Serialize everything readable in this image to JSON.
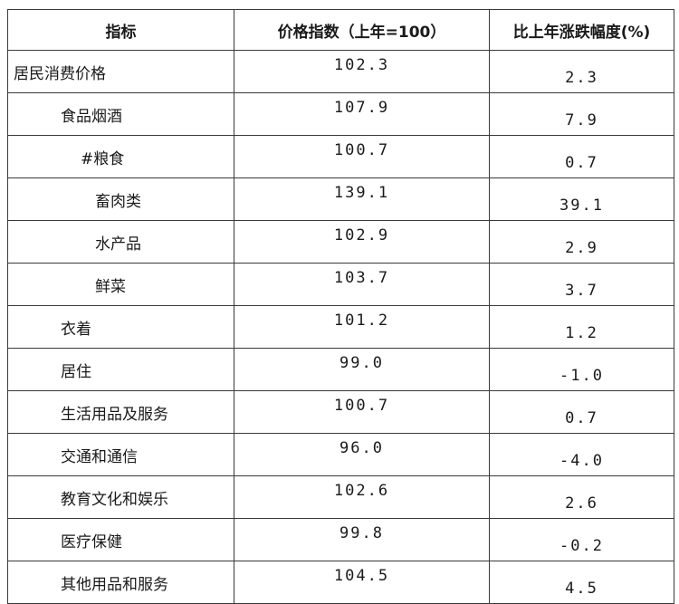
{
  "table": {
    "headers": [
      "指标",
      "价格指数（上年=100）",
      "比上年涨跌幅度(%)"
    ],
    "rows": [
      {
        "name": "居民消费价格",
        "level": 0,
        "index": "102.3",
        "change": "2.3"
      },
      {
        "name": "食品烟酒",
        "level": 1,
        "index": "107.9",
        "change": "7.9"
      },
      {
        "name": "#粮食",
        "level": 2,
        "index": "100.7",
        "change": "0.7"
      },
      {
        "name": "畜肉类",
        "level": 3,
        "index": "139.1",
        "change": "39.1"
      },
      {
        "name": "水产品",
        "level": 3,
        "index": "102.9",
        "change": "2.9"
      },
      {
        "name": "鲜菜",
        "level": 3,
        "index": "103.7",
        "change": "3.7"
      },
      {
        "name": "衣着",
        "level": 1,
        "index": "101.2",
        "change": "1.2"
      },
      {
        "name": "居住",
        "level": 1,
        "index": "99.0",
        "change": "-1.0"
      },
      {
        "name": "生活用品及服务",
        "level": 1,
        "index": "100.7",
        "change": "0.7"
      },
      {
        "name": "交通和通信",
        "level": 1,
        "index": "96.0",
        "change": "-4.0"
      },
      {
        "name": "教育文化和娱乐",
        "level": 1,
        "index": "102.6",
        "change": "2.6"
      },
      {
        "name": "医疗保健",
        "level": 1,
        "index": "99.8",
        "change": "-0.2"
      },
      {
        "name": "其他用品和服务",
        "level": 1,
        "index": "104.5",
        "change": "4.5"
      }
    ]
  }
}
